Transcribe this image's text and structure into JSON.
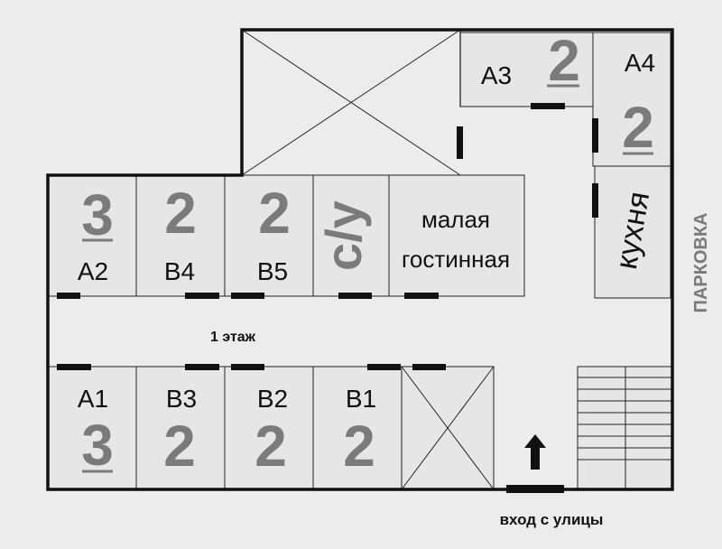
{
  "floor_label": "1 этаж",
  "entrance_label": "вход с улицы",
  "parking_label": "ПАРКОВКА",
  "rooms": {
    "a1": {
      "label": "A1",
      "beds": "3"
    },
    "a2": {
      "label": "A2",
      "beds": "3"
    },
    "a3": {
      "label": "A3",
      "beds": "2"
    },
    "a4": {
      "label": "A4",
      "beds": "2"
    },
    "b1": {
      "label": "B1",
      "beds": "2"
    },
    "b2": {
      "label": "B2",
      "beds": "2"
    },
    "b3": {
      "label": "B3",
      "beds": "2"
    },
    "b4": {
      "label": "B4",
      "beds": "2"
    },
    "b5": {
      "label": "B5",
      "beds": "2"
    },
    "wc": {
      "label": "с/у"
    },
    "lounge": {
      "line1": "малая",
      "line2": "гостинная"
    },
    "kitchen": {
      "label": "кухня"
    }
  },
  "colors": {
    "background": "#ececec",
    "room_fill": "#e6e6e6",
    "wall": "#111111",
    "number": "#7b7b7b"
  }
}
